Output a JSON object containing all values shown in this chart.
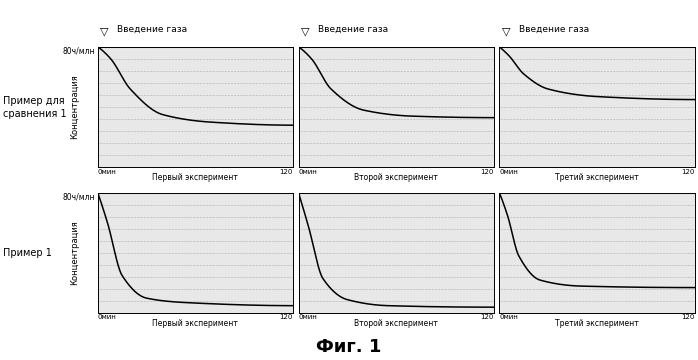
{
  "title": "Фиг. 1",
  "panel1_label": "Пример для\nсравнения 1",
  "panel2_label": "Пример 1",
  "y_label": "Концентрация",
  "y_tick_label": "80ч/млн",
  "experiments": [
    "Первый эксперимент",
    "Второй эксперимент",
    "Третий эксперимент"
  ],
  "x_start_label": "0мин",
  "x_end_label": "120",
  "gas_label": "Введение газа",
  "bg_color": "#ffffff",
  "panel1_curves": [
    {
      "x": [
        0,
        8,
        20,
        40,
        70,
        120
      ],
      "y": [
        80,
        72,
        52,
        35,
        30,
        28
      ]
    },
    {
      "x": [
        0,
        8,
        20,
        40,
        70,
        120
      ],
      "y": [
        80,
        72,
        52,
        38,
        34,
        33
      ]
    },
    {
      "x": [
        0,
        6,
        15,
        30,
        60,
        120
      ],
      "y": [
        80,
        74,
        62,
        52,
        47,
        45
      ]
    }
  ],
  "panel2_curves": [
    {
      "x": [
        0,
        6,
        15,
        30,
        55,
        120
      ],
      "y": [
        80,
        60,
        25,
        10,
        7,
        5
      ]
    },
    {
      "x": [
        0,
        6,
        15,
        30,
        55,
        120
      ],
      "y": [
        80,
        58,
        23,
        9,
        5,
        4
      ]
    },
    {
      "x": [
        0,
        5,
        12,
        25,
        50,
        120
      ],
      "y": [
        80,
        65,
        38,
        22,
        18,
        17
      ]
    }
  ],
  "grid_color": "#888888",
  "line_color": "#000000",
  "panel_bg": "#e8e8e8"
}
